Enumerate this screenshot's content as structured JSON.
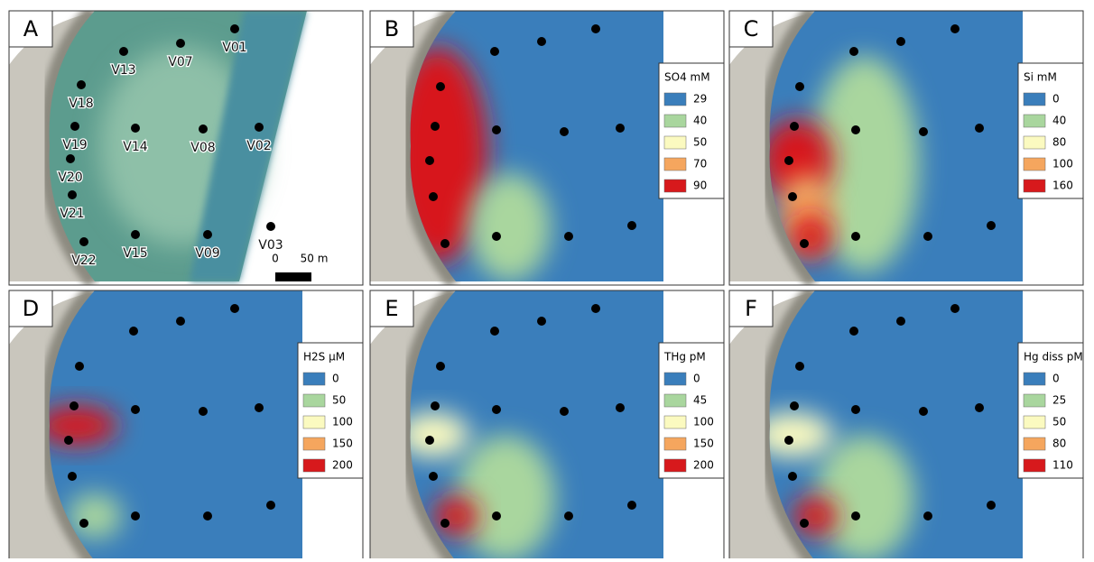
{
  "legend_colors": [
    "#3a7ebb",
    "#a9d69e",
    "#fbfac0",
    "#f5a65e",
    "#d7191c"
  ],
  "panel_a": {
    "letter": "A",
    "stations": [
      "V01",
      "V07",
      "V13",
      "V18",
      "V19",
      "V14",
      "V08",
      "V02",
      "V20",
      "V21",
      "V22",
      "V15",
      "V09",
      "V03"
    ],
    "scale_bar": {
      "start": "0",
      "end": "50 m"
    }
  },
  "maps": [
    {
      "letter": "B",
      "legend": {
        "title": "SO4 mM",
        "entries": [
          29,
          40,
          50,
          70,
          90
        ]
      }
    },
    {
      "letter": "C",
      "legend": {
        "title": "Si mM",
        "entries": [
          0,
          40,
          80,
          100,
          160
        ]
      }
    },
    {
      "letter": "D",
      "legend": {
        "title": "H2S µM",
        "entries": [
          0,
          50,
          100,
          150,
          200
        ]
      }
    },
    {
      "letter": "E",
      "legend": {
        "title": "THg pM",
        "entries": [
          0,
          45,
          100,
          150,
          200
        ]
      }
    },
    {
      "letter": "F",
      "legend": {
        "title": "Hg diss pM",
        "entries": [
          0,
          25,
          50,
          80,
          110
        ]
      }
    }
  ]
}
